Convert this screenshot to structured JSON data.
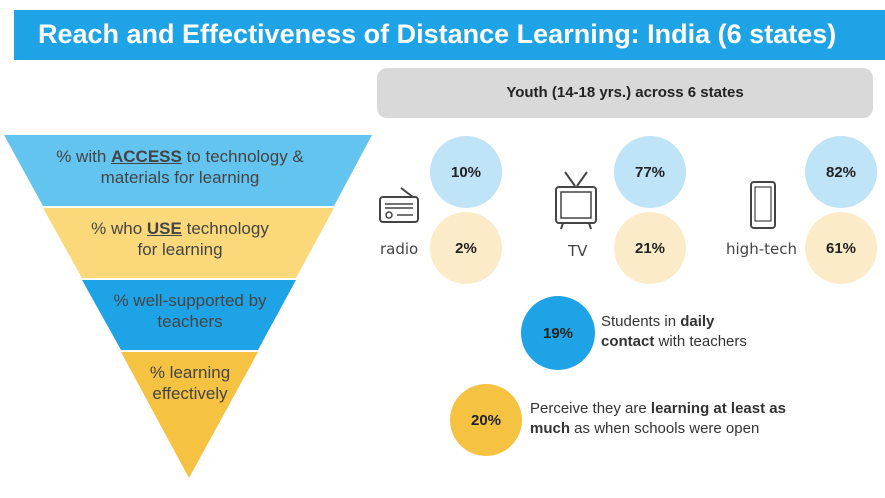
{
  "title": "Reach and Effectiveness of Distance Learning: India (6 states)",
  "youth_header": "Youth (14-18 yrs.) across 6 states",
  "funnel": {
    "levels": [
      {
        "pre": "% with ",
        "key": "ACCESS",
        "post": " to technology &",
        "line2": "materials for learning",
        "color": "#64c4f0"
      },
      {
        "pre": "% who ",
        "key": "USE",
        "post": " technology",
        "line2": "for learning",
        "color": "#fbd97a"
      },
      {
        "line1": "% well-supported by",
        "line2": "teachers",
        "color": "#1ea4e6"
      },
      {
        "line1": "% learning",
        "line2": "effectively",
        "color": "#f5c242"
      }
    ]
  },
  "media": [
    {
      "label": "radio",
      "icon": "radio-icon",
      "access": "10%",
      "use": "2%"
    },
    {
      "label": "TV",
      "icon": "tv-icon",
      "access": "77%",
      "use": "21%"
    },
    {
      "label": "high-tech",
      "icon": "smartphone-icon",
      "access": "82%",
      "use": "61%"
    }
  ],
  "support": {
    "value": "19%",
    "text_pre": "Students in ",
    "text_bold": "daily contact",
    "text_post": " with teachers",
    "line1_pre": "Students in ",
    "line1_bold": "daily",
    "line2_bold": "contact",
    "line2_post": " with teachers"
  },
  "effective": {
    "value": "20%",
    "line1_pre": "Perceive they are ",
    "line1_bold": "learning at least as",
    "line2_bold": "much",
    "line2_post": " as when schools were open"
  },
  "colors": {
    "title_band": "#1ea4e6",
    "light_blue": "#bfe3f7",
    "cream": "#fcebc8",
    "strong_blue": "#1ea4e6",
    "strong_yellow": "#f5c242"
  }
}
